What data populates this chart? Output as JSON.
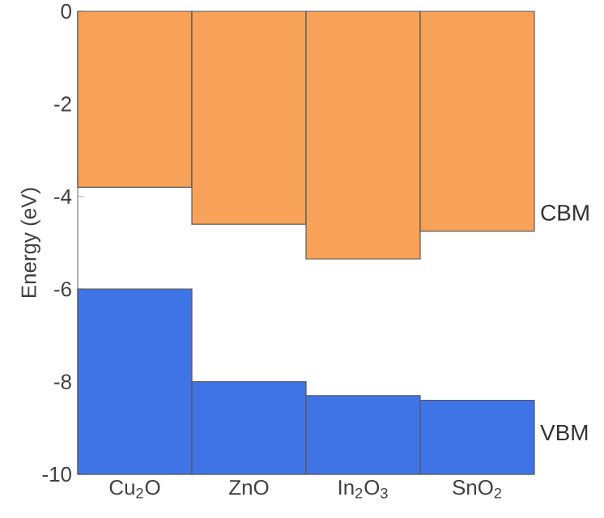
{
  "chart_data": {
    "type": "bar",
    "ylabel": "Energy (eV)",
    "categories": [
      "Cu$_{2}$O",
      "ZnO",
      "In$_{2}$O$_{3}$",
      "SnO$_{2}$"
    ],
    "series": [
      {
        "name": "CBM",
        "color": "#f7a258",
        "base": [
          0,
          0,
          0,
          0
        ],
        "values": [
          -3.8,
          -4.6,
          -5.35,
          -4.75
        ]
      },
      {
        "name": "VBM",
        "color": "#3f74e6",
        "base": [
          -10,
          -10,
          -10,
          -10
        ],
        "values": [
          4.0,
          2.0,
          1.7,
          1.6
        ]
      }
    ],
    "ylim": [
      -10,
      0
    ],
    "yticks": [
      -10,
      -8,
      -6,
      -4,
      -2,
      0
    ]
  }
}
